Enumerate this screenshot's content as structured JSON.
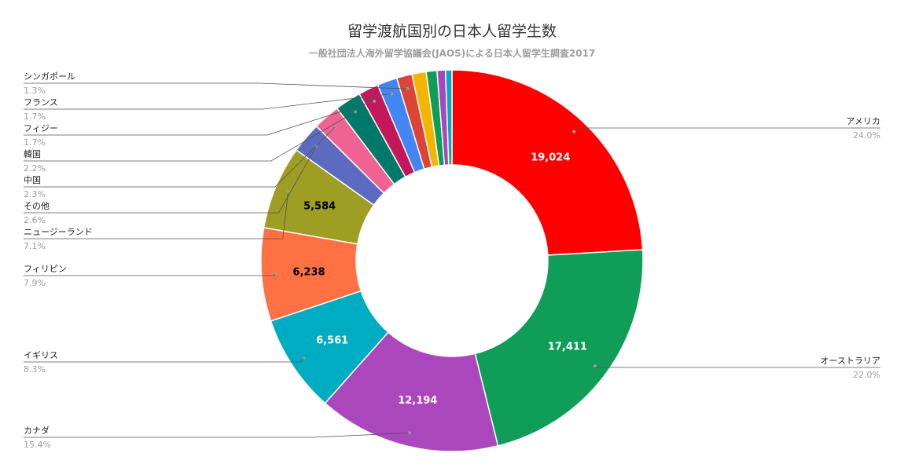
{
  "chart_data": {
    "type": "pie",
    "donut": true,
    "title": "留学渡航国別の日本人留学生数",
    "subtitle": "一般社団法人海外留学協議会(JAOS)による日本人留学生調査2017",
    "slices": [
      {
        "label": "アメリカ",
        "value": 19024,
        "percent": "24.0%",
        "value_label": "19,024",
        "color": "#ff0000",
        "label_color": "#ffffff"
      },
      {
        "label": "オーストラリア",
        "value": 17411,
        "percent": "22.0%",
        "value_label": "17,411",
        "color": "#0f9d58",
        "label_color": "#ffffff"
      },
      {
        "label": "カナダ",
        "value": 12194,
        "percent": "15.4%",
        "value_label": "12,194",
        "color": "#ab47bc",
        "label_color": "#ffffff"
      },
      {
        "label": "イギリス",
        "value": 6561,
        "percent": "8.3%",
        "value_label": "6,561",
        "color": "#00acc1",
        "label_color": "#ffffff"
      },
      {
        "label": "フィリピン",
        "value": 6238,
        "percent": "7.9%",
        "value_label": "6,238",
        "color": "#ff7043",
        "label_color": "#000000"
      },
      {
        "label": "ニュージーランド",
        "value": 5584,
        "percent": "7.1%",
        "value_label": "5,584",
        "color": "#9e9d24",
        "label_color": "#000000"
      },
      {
        "label": "その他",
        "value": 2050,
        "percent": "2.6%",
        "value_label": "",
        "color": "#5c6bc0",
        "label_color": "#ffffff"
      },
      {
        "label": "中国",
        "value": 1800,
        "percent": "2.3%",
        "value_label": "",
        "color": "#f06292",
        "label_color": "#ffffff"
      },
      {
        "label": "韓国",
        "value": 1750,
        "percent": "2.2%",
        "value_label": "",
        "color": "#00796b",
        "label_color": "#ffffff"
      },
      {
        "label": "フィジー",
        "value": 1340,
        "percent": "1.7%",
        "value_label": "",
        "color": "#c2185b",
        "label_color": "#ffffff"
      },
      {
        "label": "フランス",
        "value": 1340,
        "percent": "1.7%",
        "value_label": "",
        "color": "#4285f4",
        "label_color": "#ffffff"
      },
      {
        "label": "シンガポール",
        "value": 1030,
        "percent": "1.3%",
        "value_label": "",
        "color": "#db4437",
        "label_color": "#ffffff"
      },
      {
        "label": "",
        "value": 950,
        "percent": "",
        "value_label": "",
        "color": "#f4b400",
        "label_color": "#ffffff"
      },
      {
        "label": "",
        "value": 720,
        "percent": "",
        "value_label": "",
        "color": "#0f9d58",
        "label_color": "#ffffff"
      },
      {
        "label": "",
        "value": 560,
        "percent": "",
        "value_label": "",
        "color": "#ab47bc",
        "label_color": "#ffffff"
      },
      {
        "label": "",
        "value": 430,
        "percent": "",
        "value_label": "",
        "color": "#00acc1",
        "label_color": "#ffffff"
      }
    ]
  }
}
